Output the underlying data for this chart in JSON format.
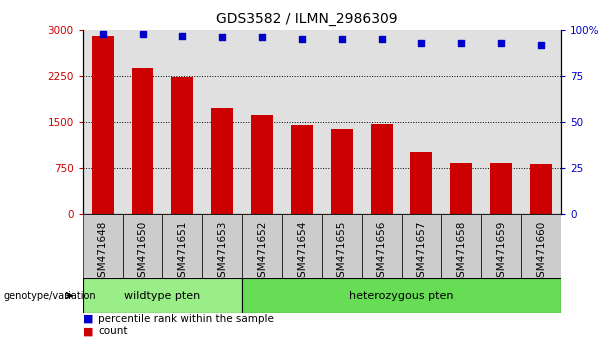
{
  "title": "GDS3582 / ILMN_2986309",
  "categories": [
    "GSM471648",
    "GSM471650",
    "GSM471651",
    "GSM471653",
    "GSM471652",
    "GSM471654",
    "GSM471655",
    "GSM471656",
    "GSM471657",
    "GSM471658",
    "GSM471659",
    "GSM471660"
  ],
  "bar_values": [
    2900,
    2380,
    2240,
    1730,
    1620,
    1450,
    1390,
    1470,
    1020,
    830,
    840,
    820
  ],
  "percentile_values": [
    98,
    98,
    97,
    96,
    96,
    95,
    95,
    95,
    93,
    93,
    93,
    92
  ],
  "bar_color": "#cc0000",
  "dot_color": "#0000cc",
  "ylim_left": [
    0,
    3000
  ],
  "ylim_right": [
    0,
    100
  ],
  "yticks_left": [
    0,
    750,
    1500,
    2250,
    3000
  ],
  "yticks_right": [
    0,
    25,
    50,
    75,
    100
  ],
  "ytick_labels_left": [
    "0",
    "750",
    "1500",
    "2250",
    "3000"
  ],
  "ytick_labels_right": [
    "0",
    "25",
    "50",
    "75",
    "100%"
  ],
  "grid_values": [
    750,
    1500,
    2250
  ],
  "wildtype_count": 4,
  "heterozygous_count": 8,
  "wildtype_label": "wildtype pten",
  "heterozygous_label": "heterozygous pten",
  "wildtype_color": "#99EE88",
  "heterozygous_color": "#66DD55",
  "genotype_label": "genotype/variation",
  "legend_count": "count",
  "legend_percentile": "percentile rank within the sample",
  "cell_bg": "#cccccc",
  "title_fontsize": 10,
  "tick_fontsize": 7.5
}
